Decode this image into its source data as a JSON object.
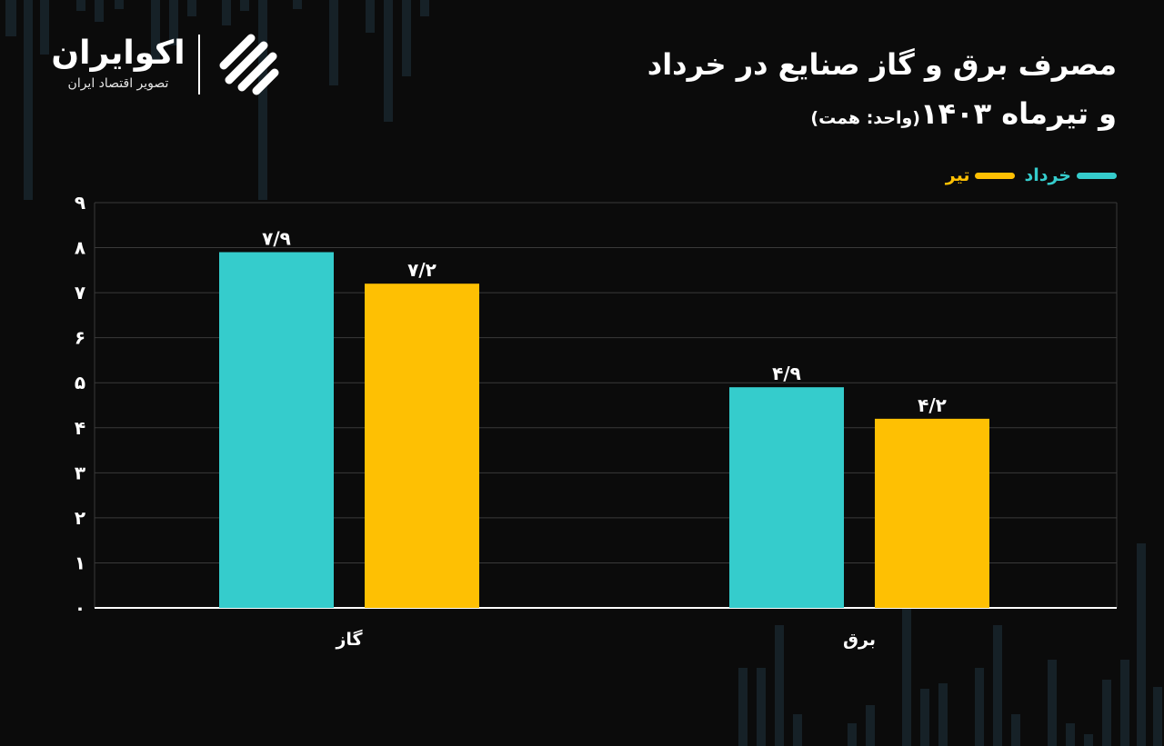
{
  "title": {
    "line1": "مصرف برق و گاز صنایع در خرداد",
    "line2": "و تیرماه ۱۴۰۳",
    "unit": "(واحد: همت)"
  },
  "brand": {
    "name": "اکوایران",
    "tagline": "تصویر اقتصاد ایران"
  },
  "colors": {
    "series1": "#35cccc",
    "series2": "#fec003",
    "background": "#0b0b0b",
    "grid": "#3a3a3a",
    "axis": "#ffffff"
  },
  "chart_data": {
    "type": "bar",
    "categories": [
      "گاز",
      "برق"
    ],
    "series": [
      {
        "name": "خرداد",
        "values": [
          7.9,
          4.9
        ],
        "labels": [
          "۷/۹",
          "۴/۹"
        ]
      },
      {
        "name": "تیر",
        "values": [
          7.2,
          4.2
        ],
        "labels": [
          "۷/۲",
          "۴/۲"
        ]
      }
    ],
    "yticks": [
      0,
      1,
      2,
      3,
      4,
      5,
      6,
      7,
      8,
      9
    ],
    "ytick_labels": [
      "۰",
      "۱",
      "۲",
      "۳",
      "۴",
      "۵",
      "۶",
      "۷",
      "۸",
      "۹"
    ],
    "ylim": [
      0,
      9
    ],
    "xlabel": "",
    "ylabel": "",
    "grid": true,
    "legend_position": "top-right"
  }
}
